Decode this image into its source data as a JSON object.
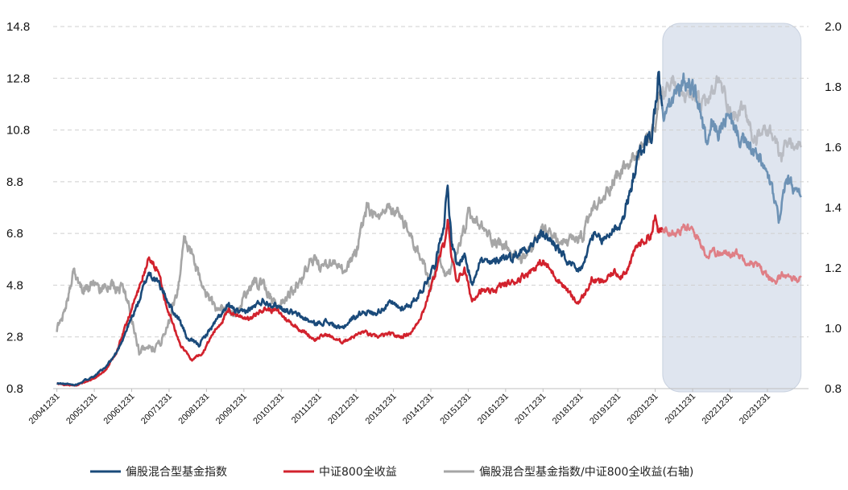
{
  "chart_data": {
    "type": "line",
    "title": "",
    "xlabel": "",
    "ylabel": "",
    "y_left": {
      "ticks": [
        "14.8",
        "12.8",
        "10.8",
        "8.8",
        "6.8",
        "4.8",
        "2.8",
        "0.8"
      ],
      "range": [
        0.8,
        14.8
      ]
    },
    "y_right": {
      "ticks": [
        "2.0",
        "1.8",
        "1.6",
        "1.4",
        "1.2",
        "1.0",
        "0.8"
      ],
      "range": [
        0.8,
        2.0
      ]
    },
    "x_ticks": [
      "20041231",
      "20051231",
      "20061231",
      "20071231",
      "20081231",
      "20091231",
      "20101231",
      "20111231",
      "20121231",
      "20131231",
      "20141231",
      "20151231",
      "20161231",
      "20171231",
      "20181231",
      "20191231",
      "20201231",
      "20211231",
      "20221231",
      "20231231"
    ],
    "x_range": [
      2004.9,
      2025.1
    ],
    "highlight_region": {
      "from": 2021.2,
      "to": 2024.9,
      "color": "#dfe5ef"
    },
    "grid": "horizontal-dashed",
    "legend_position": "bottom",
    "series": [
      {
        "name": "偏股混合型基金指数",
        "axis": "left",
        "color": "#1a4a7a",
        "faded_color": "#6d92b5",
        "points": [
          [
            2005.0,
            1.0
          ],
          [
            2005.5,
            0.95
          ],
          [
            2006.0,
            1.3
          ],
          [
            2006.3,
            1.6
          ],
          [
            2006.6,
            2.2
          ],
          [
            2006.9,
            3.2
          ],
          [
            2007.2,
            4.2
          ],
          [
            2007.45,
            5.3
          ],
          [
            2007.7,
            4.9
          ],
          [
            2007.9,
            4.4
          ],
          [
            2008.1,
            3.8
          ],
          [
            2008.3,
            3.4
          ],
          [
            2008.5,
            2.7
          ],
          [
            2008.8,
            2.5
          ],
          [
            2009.0,
            2.9
          ],
          [
            2009.3,
            3.5
          ],
          [
            2009.6,
            4.0
          ],
          [
            2009.9,
            3.7
          ],
          [
            2010.2,
            3.9
          ],
          [
            2010.5,
            4.2
          ],
          [
            2010.9,
            4.0
          ],
          [
            2011.2,
            3.8
          ],
          [
            2011.5,
            3.6
          ],
          [
            2011.9,
            3.3
          ],
          [
            2012.2,
            3.4
          ],
          [
            2012.6,
            3.1
          ],
          [
            2012.9,
            3.5
          ],
          [
            2013.2,
            3.8
          ],
          [
            2013.5,
            3.7
          ],
          [
            2013.9,
            4.1
          ],
          [
            2014.2,
            3.9
          ],
          [
            2014.5,
            4.1
          ],
          [
            2014.8,
            4.7
          ],
          [
            2015.1,
            5.6
          ],
          [
            2015.35,
            7.2
          ],
          [
            2015.45,
            8.7
          ],
          [
            2015.55,
            6.5
          ],
          [
            2015.7,
            5.5
          ],
          [
            2015.9,
            6.0
          ],
          [
            2016.1,
            4.8
          ],
          [
            2016.3,
            5.8
          ],
          [
            2016.6,
            5.6
          ],
          [
            2016.9,
            5.9
          ],
          [
            2017.2,
            5.9
          ],
          [
            2017.5,
            6.2
          ],
          [
            2017.8,
            6.5
          ],
          [
            2018.0,
            6.8
          ],
          [
            2018.3,
            6.4
          ],
          [
            2018.6,
            5.8
          ],
          [
            2018.9,
            5.3
          ],
          [
            2019.1,
            5.6
          ],
          [
            2019.3,
            6.7
          ],
          [
            2019.6,
            6.5
          ],
          [
            2019.9,
            7.0
          ],
          [
            2020.1,
            7.2
          ],
          [
            2020.3,
            8.2
          ],
          [
            2020.5,
            9.6
          ],
          [
            2020.7,
            10.2
          ],
          [
            2020.9,
            10.6
          ],
          [
            2021.0,
            11.6
          ],
          [
            2021.1,
            13.1
          ],
          [
            2021.2,
            11.2
          ],
          [
            2021.4,
            11.8
          ],
          [
            2021.6,
            12.3
          ],
          [
            2021.8,
            12.7
          ],
          [
            2022.0,
            12.5
          ],
          [
            2022.2,
            11.6
          ],
          [
            2022.4,
            10.0
          ],
          [
            2022.5,
            11.0
          ],
          [
            2022.7,
            10.7
          ],
          [
            2022.9,
            11.2
          ],
          [
            2023.1,
            11.0
          ],
          [
            2023.3,
            10.4
          ],
          [
            2023.6,
            10.0
          ],
          [
            2023.9,
            9.4
          ],
          [
            2024.1,
            8.6
          ],
          [
            2024.3,
            7.3
          ],
          [
            2024.5,
            8.9
          ],
          [
            2024.7,
            8.5
          ],
          [
            2024.9,
            8.2
          ]
        ]
      },
      {
        "name": "中证800全收益",
        "axis": "left",
        "color": "#d2222d",
        "faded_color": "#df7f86",
        "points": [
          [
            2005.0,
            1.0
          ],
          [
            2005.5,
            0.9
          ],
          [
            2006.0,
            1.2
          ],
          [
            2006.3,
            1.5
          ],
          [
            2006.6,
            2.2
          ],
          [
            2006.9,
            3.5
          ],
          [
            2007.2,
            4.7
          ],
          [
            2007.45,
            5.8
          ],
          [
            2007.7,
            5.4
          ],
          [
            2007.9,
            4.2
          ],
          [
            2008.1,
            3.3
          ],
          [
            2008.3,
            2.5
          ],
          [
            2008.6,
            1.9
          ],
          [
            2008.9,
            2.2
          ],
          [
            2009.2,
            3.0
          ],
          [
            2009.6,
            3.8
          ],
          [
            2009.9,
            3.6
          ],
          [
            2010.2,
            3.5
          ],
          [
            2010.5,
            3.9
          ],
          [
            2010.9,
            3.8
          ],
          [
            2011.2,
            3.4
          ],
          [
            2011.5,
            3.1
          ],
          [
            2011.9,
            2.7
          ],
          [
            2012.2,
            2.9
          ],
          [
            2012.6,
            2.6
          ],
          [
            2012.9,
            2.8
          ],
          [
            2013.2,
            3.0
          ],
          [
            2013.5,
            2.8
          ],
          [
            2013.9,
            2.9
          ],
          [
            2014.2,
            2.8
          ],
          [
            2014.5,
            3.0
          ],
          [
            2014.8,
            3.8
          ],
          [
            2015.1,
            5.2
          ],
          [
            2015.35,
            6.4
          ],
          [
            2015.45,
            7.3
          ],
          [
            2015.55,
            5.8
          ],
          [
            2015.7,
            5.0
          ],
          [
            2015.9,
            5.4
          ],
          [
            2016.1,
            4.2
          ],
          [
            2016.3,
            4.6
          ],
          [
            2016.6,
            4.5
          ],
          [
            2016.9,
            4.8
          ],
          [
            2017.2,
            4.9
          ],
          [
            2017.5,
            5.2
          ],
          [
            2017.8,
            5.5
          ],
          [
            2018.0,
            5.7
          ],
          [
            2018.3,
            5.2
          ],
          [
            2018.6,
            4.7
          ],
          [
            2018.9,
            4.1
          ],
          [
            2019.1,
            4.4
          ],
          [
            2019.3,
            5.0
          ],
          [
            2019.6,
            4.9
          ],
          [
            2019.9,
            5.3
          ],
          [
            2020.1,
            5.2
          ],
          [
            2020.3,
            5.5
          ],
          [
            2020.5,
            6.3
          ],
          [
            2020.7,
            6.5
          ],
          [
            2020.9,
            6.8
          ],
          [
            2021.0,
            7.4
          ],
          [
            2021.1,
            6.8
          ],
          [
            2021.3,
            7.0
          ],
          [
            2021.6,
            6.9
          ],
          [
            2021.8,
            7.0
          ],
          [
            2022.0,
            6.9
          ],
          [
            2022.2,
            6.5
          ],
          [
            2022.4,
            5.9
          ],
          [
            2022.5,
            6.2
          ],
          [
            2022.7,
            6.0
          ],
          [
            2022.9,
            6.0
          ],
          [
            2023.1,
            6.1
          ],
          [
            2023.4,
            5.8
          ],
          [
            2023.7,
            5.6
          ],
          [
            2023.9,
            5.3
          ],
          [
            2024.1,
            5.1
          ],
          [
            2024.2,
            4.8
          ],
          [
            2024.4,
            5.3
          ],
          [
            2024.6,
            5.0
          ],
          [
            2024.9,
            5.1
          ]
        ]
      },
      {
        "name": "偏股混合型基金指数/中证800全收益(右轴)",
        "axis": "right",
        "color": "#a6a6a6",
        "faded_color": "#b9bcc3",
        "points": [
          [
            2005.0,
            1.0
          ],
          [
            2005.1,
            1.02
          ],
          [
            2005.3,
            1.1
          ],
          [
            2005.45,
            1.2
          ],
          [
            2005.6,
            1.13
          ],
          [
            2005.9,
            1.14
          ],
          [
            2006.2,
            1.13
          ],
          [
            2006.5,
            1.14
          ],
          [
            2006.8,
            1.13
          ],
          [
            2007.0,
            1.04
          ],
          [
            2007.2,
            0.92
          ],
          [
            2007.4,
            0.95
          ],
          [
            2007.6,
            0.93
          ],
          [
            2007.8,
            0.96
          ],
          [
            2008.0,
            1.02
          ],
          [
            2008.3,
            1.17
          ],
          [
            2008.4,
            1.3
          ],
          [
            2008.6,
            1.24
          ],
          [
            2008.9,
            1.13
          ],
          [
            2009.2,
            1.07
          ],
          [
            2009.5,
            1.06
          ],
          [
            2009.8,
            1.04
          ],
          [
            2010.0,
            1.1
          ],
          [
            2010.3,
            1.16
          ],
          [
            2010.6,
            1.13
          ],
          [
            2010.9,
            1.07
          ],
          [
            2011.2,
            1.11
          ],
          [
            2011.5,
            1.15
          ],
          [
            2011.8,
            1.23
          ],
          [
            2012.1,
            1.2
          ],
          [
            2012.4,
            1.21
          ],
          [
            2012.7,
            1.19
          ],
          [
            2013.0,
            1.25
          ],
          [
            2013.3,
            1.4
          ],
          [
            2013.6,
            1.35
          ],
          [
            2013.9,
            1.4
          ],
          [
            2014.2,
            1.37
          ],
          [
            2014.5,
            1.29
          ],
          [
            2014.8,
            1.21
          ],
          [
            2015.0,
            1.12
          ],
          [
            2015.2,
            1.25
          ],
          [
            2015.4,
            1.17
          ],
          [
            2015.6,
            1.2
          ],
          [
            2015.8,
            1.29
          ],
          [
            2016.0,
            1.37
          ],
          [
            2016.3,
            1.34
          ],
          [
            2016.6,
            1.3
          ],
          [
            2016.9,
            1.28
          ],
          [
            2017.2,
            1.24
          ],
          [
            2017.5,
            1.23
          ],
          [
            2017.8,
            1.29
          ],
          [
            2018.0,
            1.32
          ],
          [
            2018.3,
            1.3
          ],
          [
            2018.6,
            1.28
          ],
          [
            2018.9,
            1.29
          ],
          [
            2019.1,
            1.31
          ],
          [
            2019.3,
            1.39
          ],
          [
            2019.6,
            1.42
          ],
          [
            2019.9,
            1.5
          ],
          [
            2020.2,
            1.53
          ],
          [
            2020.5,
            1.57
          ],
          [
            2020.8,
            1.63
          ],
          [
            2021.0,
            1.66
          ],
          [
            2021.1,
            1.75
          ],
          [
            2021.3,
            1.78
          ],
          [
            2021.5,
            1.82
          ],
          [
            2021.7,
            1.77
          ],
          [
            2021.9,
            1.75
          ],
          [
            2022.1,
            1.77
          ],
          [
            2022.3,
            1.73
          ],
          [
            2022.5,
            1.77
          ],
          [
            2022.7,
            1.82
          ],
          [
            2022.9,
            1.76
          ],
          [
            2023.1,
            1.7
          ],
          [
            2023.4,
            1.73
          ],
          [
            2023.6,
            1.62
          ],
          [
            2023.8,
            1.64
          ],
          [
            2024.0,
            1.66
          ],
          [
            2024.2,
            1.62
          ],
          [
            2024.35,
            1.55
          ],
          [
            2024.5,
            1.61
          ],
          [
            2024.7,
            1.61
          ],
          [
            2024.9,
            1.6
          ]
        ]
      }
    ]
  }
}
